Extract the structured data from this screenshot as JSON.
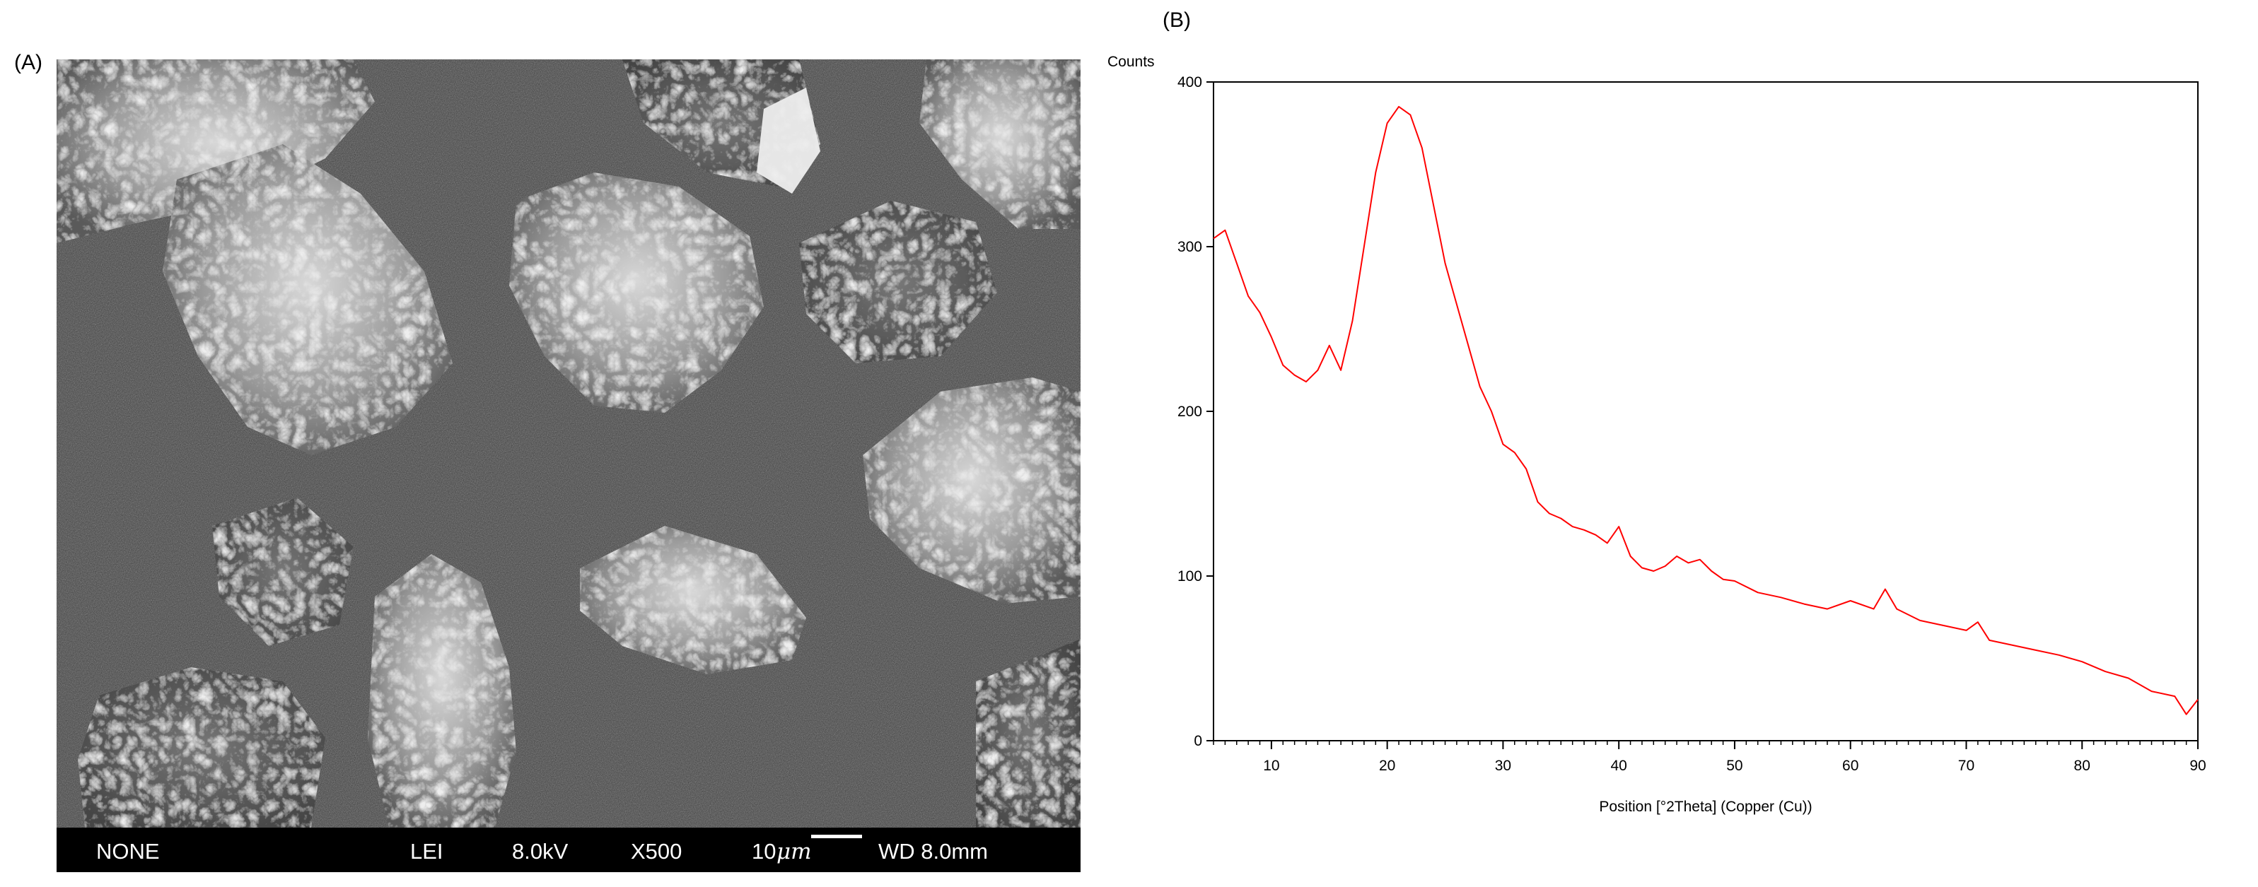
{
  "panels": {
    "a_label": "(A)",
    "b_label": "(B)"
  },
  "sem": {
    "info_bar": {
      "signal": "NONE",
      "detector": "LEI",
      "voltage": "8.0kV",
      "magnification": "X500",
      "scale_value": "10",
      "scale_unit": "μm",
      "working_distance": "WD 8.0mm"
    }
  },
  "chart_data": {
    "type": "line",
    "title": "",
    "xlabel": "Position [°2Theta] (Copper (Cu))",
    "ylabel": "Counts",
    "xlim": [
      5,
      90
    ],
    "ylim": [
      0,
      400
    ],
    "xticks": [
      10,
      20,
      30,
      40,
      50,
      60,
      70,
      80,
      90
    ],
    "yticks": [
      0,
      100,
      200,
      300,
      400
    ],
    "grid": false,
    "series": [
      {
        "color": "#ff0000",
        "x": [
          5,
          6,
          7,
          8,
          9,
          10,
          11,
          12,
          13,
          14,
          15,
          16,
          17,
          18,
          19,
          20,
          21,
          22,
          23,
          24,
          25,
          26,
          27,
          28,
          29,
          30,
          31,
          32,
          33,
          34,
          35,
          36,
          37,
          38,
          39,
          40,
          41,
          42,
          43,
          44,
          45,
          46,
          47,
          48,
          49,
          50,
          52,
          54,
          56,
          58,
          60,
          62,
          63,
          64,
          66,
          68,
          70,
          71,
          72,
          74,
          76,
          78,
          80,
          82,
          84,
          86,
          88,
          89,
          90
        ],
        "y": [
          305,
          310,
          290,
          270,
          260,
          245,
          228,
          222,
          218,
          225,
          240,
          225,
          255,
          300,
          345,
          375,
          385,
          380,
          360,
          325,
          290,
          265,
          240,
          215,
          200,
          180,
          175,
          165,
          145,
          138,
          135,
          130,
          128,
          125,
          120,
          130,
          112,
          105,
          103,
          106,
          112,
          108,
          110,
          103,
          98,
          97,
          90,
          87,
          83,
          80,
          85,
          80,
          92,
          80,
          73,
          70,
          67,
          72,
          61,
          58,
          55,
          52,
          48,
          42,
          38,
          30,
          27,
          16,
          25
        ]
      }
    ]
  }
}
